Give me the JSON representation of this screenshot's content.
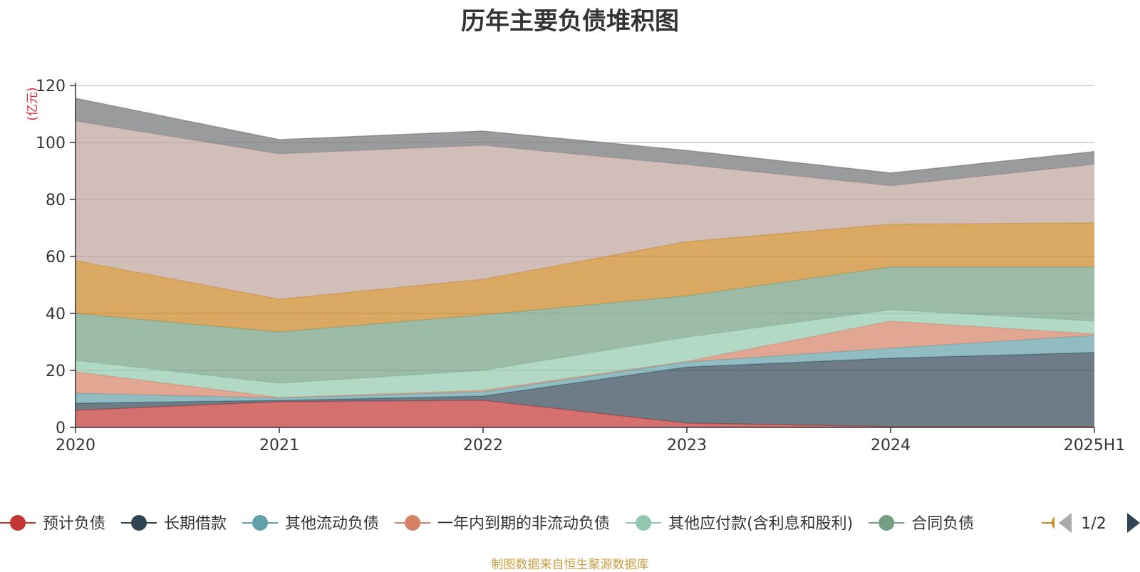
{
  "chart_data": {
    "type": "area",
    "stacked": true,
    "title": "历年主要负债堆积图",
    "ylabel": "亿元",
    "ylim": [
      0,
      120
    ],
    "yticks": [
      0,
      20,
      40,
      60,
      80,
      100,
      120
    ],
    "grid": true,
    "legend_position": "bottom",
    "categories": [
      "2020",
      "2021",
      "2022",
      "2023",
      "2024",
      "2025H1"
    ],
    "series": [
      {
        "name": "预计负债",
        "color": "#c23531",
        "values": [
          6,
          9,
          9.5,
          1.5,
          0.3,
          0.3
        ]
      },
      {
        "name": "长期借款",
        "color": "#2f4554",
        "values": [
          2.5,
          0.5,
          1.5,
          19.7,
          24,
          26
        ]
      },
      {
        "name": "其他流动负债",
        "color": "#61a0a8",
        "values": [
          3.5,
          0.8,
          1.5,
          1.8,
          3.5,
          6
        ]
      },
      {
        "name": "一年内到期的非流动负债",
        "color": "#d48265",
        "values": [
          7.5,
          0.2,
          0.5,
          0.2,
          9.5,
          0.5
        ]
      },
      {
        "name": "其他应付款(含利息和股利)",
        "color": "#91c7ae",
        "values": [
          4,
          5,
          7,
          8.5,
          4,
          4.5
        ]
      },
      {
        "name": "合同负债",
        "color": "#749f83",
        "values": [
          16.5,
          18,
          19.5,
          14.5,
          15,
          19
        ]
      },
      {
        "name": "",
        "color": "#ca8622",
        "values": [
          18.5,
          11.5,
          12.5,
          19,
          15,
          15.5
        ]
      },
      {
        "name": "",
        "color": "#bda29a",
        "values": [
          49,
          51,
          47,
          27,
          13.5,
          20.5
        ]
      },
      {
        "name": "",
        "color": "#6e7074",
        "values": [
          8,
          5,
          5,
          5,
          4.5,
          4.5
        ]
      }
    ]
  },
  "legend": {
    "items": [
      {
        "label": "预计负债",
        "color": "#c23531"
      },
      {
        "label": "长期借款",
        "color": "#2f4554"
      },
      {
        "label": "其他流动负债",
        "color": "#61a0a8"
      },
      {
        "label": "一年内到期的非流动负债",
        "color": "#d48265"
      },
      {
        "label": "其他应付款(含利息和股利)",
        "color": "#91c7ae"
      },
      {
        "label": "合同负债",
        "color": "#749f83"
      }
    ],
    "partial_color": "#ca8622",
    "page": "1/2"
  },
  "source_note": "制图数据来自恒生聚源数据库"
}
